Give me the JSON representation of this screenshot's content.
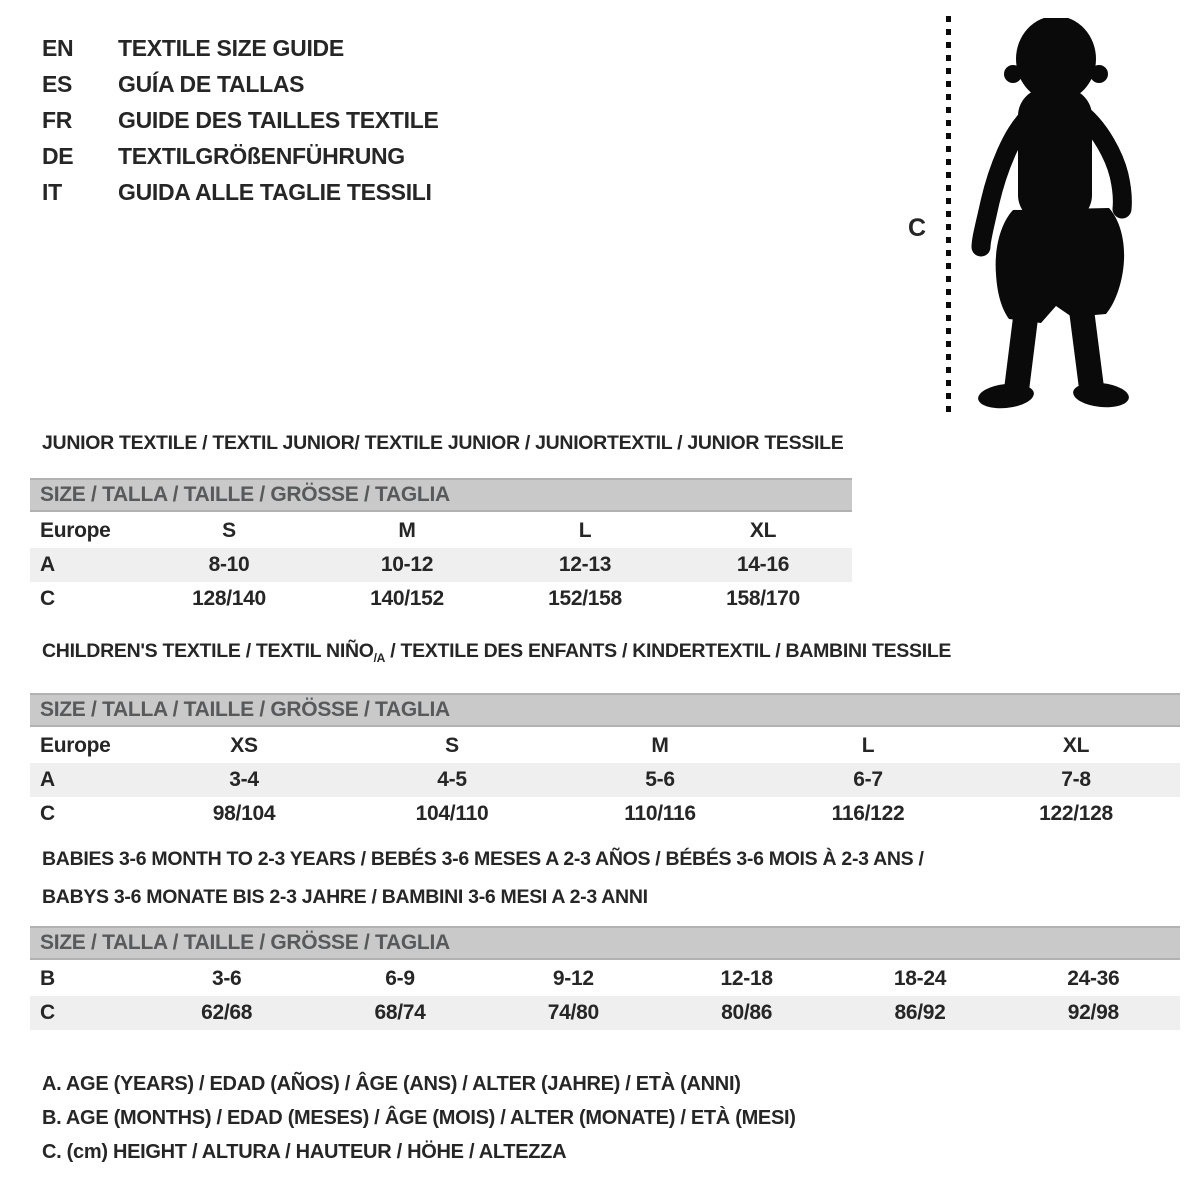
{
  "colors": {
    "page_bg": "#ffffff",
    "text": "#262626",
    "header_bar_bg": "#c9c9c9",
    "header_bar_border": "#b2b2b2",
    "header_bar_text": "#58595b",
    "shaded_row_bg": "#efefef",
    "silhouette": "#0a0a0a"
  },
  "languages": [
    {
      "code": "EN",
      "label": "TEXTILE SIZE GUIDE"
    },
    {
      "code": "ES",
      "label": "GUÍA DE TALLAS"
    },
    {
      "code": "FR",
      "label": "GUIDE DES TAILLES TEXTILE"
    },
    {
      "code": "DE",
      "label": "TEXTILGRÖßENFÜHRUNG"
    },
    {
      "code": "IT",
      "label": "GUIDA ALLE TAGLIE TESSILI"
    }
  ],
  "figure": {
    "label": "C"
  },
  "tables": [
    {
      "title_lines": [
        [
          {
            "text": "JUNIOR TEXTILE / TEXTIL JUNIOR/ TEXTILE JUNIOR / JUNIORTEXTIL / JUNIOR TESSILE",
            "sub": false
          }
        ]
      ],
      "size_header": "SIZE / TALLA / TAILLE / GRÖSSE / TAGLIA",
      "columns": 4,
      "rows": [
        {
          "label": "Europe",
          "values": [
            "S",
            "M",
            "L",
            "XL"
          ],
          "shaded": false
        },
        {
          "label": "A",
          "values": [
            "8-10",
            "10-12",
            "12-13",
            "14-16"
          ],
          "shaded": true
        },
        {
          "label": "C",
          "values": [
            "128/140",
            "140/152",
            "152/158",
            "158/170"
          ],
          "shaded": false
        }
      ]
    },
    {
      "title_lines": [
        [
          {
            "text": "CHILDREN'S TEXTILE / TEXTIL NIÑO",
            "sub": false
          },
          {
            "text": "/A",
            "sub": true
          },
          {
            "text": " / TEXTILE DES ENFANTS / KINDERTEXTIL / BAMBINI TESSILE",
            "sub": false
          }
        ]
      ],
      "size_header": "SIZE / TALLA / TAILLE / GRÖSSE / TAGLIA",
      "columns": 5,
      "rows": [
        {
          "label": "Europe",
          "values": [
            "XS",
            "S",
            "M",
            "L",
            "XL"
          ],
          "shaded": false
        },
        {
          "label": "A",
          "values": [
            "3-4",
            "4-5",
            "5-6",
            "6-7",
            "7-8"
          ],
          "shaded": true
        },
        {
          "label": "C",
          "values": [
            "98/104",
            "104/110",
            "110/116",
            "116/122",
            "122/128"
          ],
          "shaded": false
        }
      ]
    },
    {
      "title_lines": [
        [
          {
            "text": "BABIES 3-6 MONTH TO 2-3 YEARS / BEBÉS 3-6 MESES A 2-3 AÑOS / BÉBÉS 3-6 MOIS À 2-3 ANS /",
            "sub": false
          }
        ],
        [
          {
            "text": "BABYS 3-6 MONATE BIS 2-3 JAHRE / BAMBINI 3-6 MESI A 2-3 ANNI",
            "sub": false
          }
        ]
      ],
      "size_header": "SIZE / TALLA / TAILLE / GRÖSSE / TAGLIA",
      "columns": 6,
      "rows": [
        {
          "label": "B",
          "values": [
            "3-6",
            "6-9",
            "9-12",
            "12-18",
            "18-24",
            "24-36"
          ],
          "shaded": false
        },
        {
          "label": "C",
          "values": [
            "62/68",
            "68/74",
            "74/80",
            "80/86",
            "86/92",
            "92/98"
          ],
          "shaded": true
        }
      ]
    }
  ],
  "legend": [
    "A. AGE (YEARS) / EDAD (AÑOS) / ÂGE (ANS) / ALTER (JAHRE) / ETÀ (ANNI)",
    "B. AGE (MONTHS) / EDAD (MESES) / ÂGE (MOIS) / ALTER (MONATE) / ETÀ (MESI)",
    "C. (cm) HEIGHT / ALTURA / HAUTEUR / HÖHE / ALTEZZA"
  ]
}
